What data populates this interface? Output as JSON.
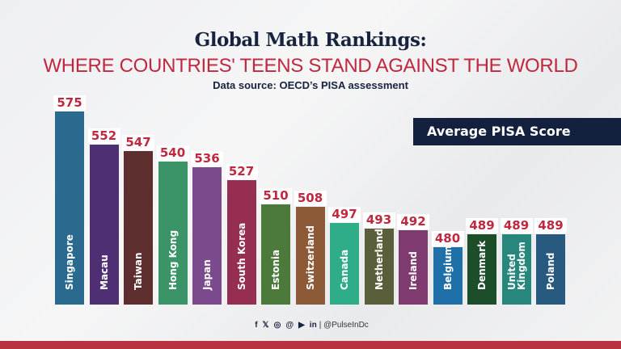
{
  "header": {
    "title": "Global Math Rankings:",
    "subtitle": "WHERE COUNTRIES' TEENS STAND AGAINST THE WORLD",
    "source": "Data source: OECD’s PISA assessment"
  },
  "chart_data": {
    "type": "bar",
    "legend": "Average PISA Score",
    "categories": [
      "Singapore",
      "Macau",
      "Taiwan",
      "Hong Kong",
      "Japan",
      "South Korea",
      "Estonia",
      "Switzerland",
      "Canada",
      "Netherlands",
      "Ireland",
      "Belgium",
      "Denmark",
      "United Kingdom",
      "Poland"
    ],
    "values": [
      575,
      552,
      547,
      540,
      536,
      527,
      510,
      508,
      497,
      493,
      492,
      480,
      489,
      489,
      489
    ],
    "colors": [
      "#2a6a8f",
      "#4e2f74",
      "#5e2e2e",
      "#3a9467",
      "#7b4a8c",
      "#952e50",
      "#4c7a3a",
      "#8c5a37",
      "#2fac88",
      "#5a5e3a",
      "#7f3b70",
      "#1f6fa8",
      "#1d4e2a",
      "#27877c",
      "#285a80"
    ],
    "grid": false
  },
  "footer": {
    "icons": [
      "facebook-icon",
      "x-icon",
      "instagram-icon",
      "threads-icon",
      "youtube-icon",
      "linkedin-icon"
    ],
    "handle": "| @PulseInDc"
  }
}
